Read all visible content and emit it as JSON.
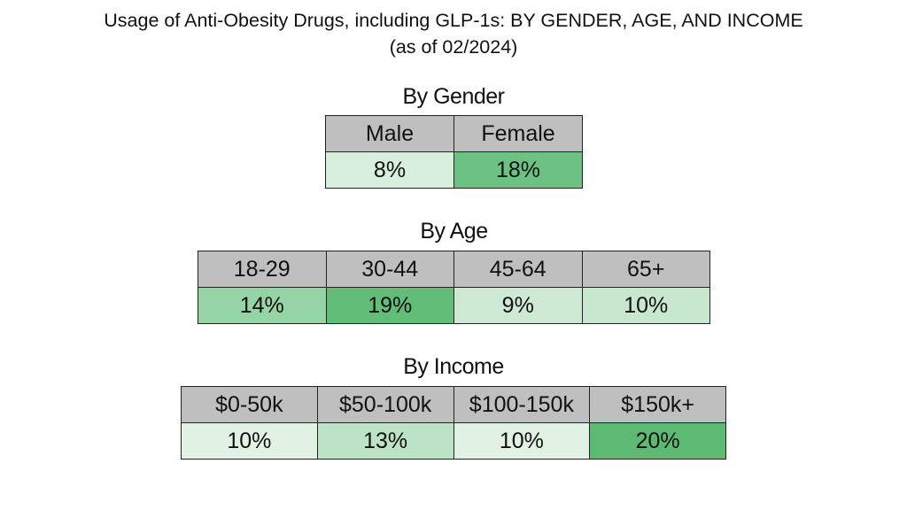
{
  "title_line1": "Usage of Anti-Obesity Drugs, including GLP-1s: BY GENDER, AGE, AND INCOME",
  "title_line2": "(as of 02/2024)",
  "chart_data": [
    {
      "type": "table",
      "title": "By Gender",
      "categories": [
        "Male",
        "Female"
      ],
      "values": [
        "8%",
        "18%"
      ],
      "colors": [
        "#d7efdc",
        "#6cc282"
      ]
    },
    {
      "type": "table",
      "title": "By Age",
      "categories": [
        "18-29",
        "30-44",
        "45-64",
        "65+"
      ],
      "values": [
        "14%",
        "19%",
        "9%",
        "10%"
      ],
      "colors": [
        "#96d3a5",
        "#61bd78",
        "#cde9d4",
        "#c8e7cf"
      ]
    },
    {
      "type": "table",
      "title": "By Income",
      "categories": [
        "$0-50k",
        "$50-100k",
        "$100-150k",
        "$150k+"
      ],
      "values": [
        "10%",
        "13%",
        "10%",
        "20%"
      ],
      "colors": [
        "#e1f2e5",
        "#bce3c6",
        "#e1f2e5",
        "#5cba73"
      ]
    }
  ]
}
